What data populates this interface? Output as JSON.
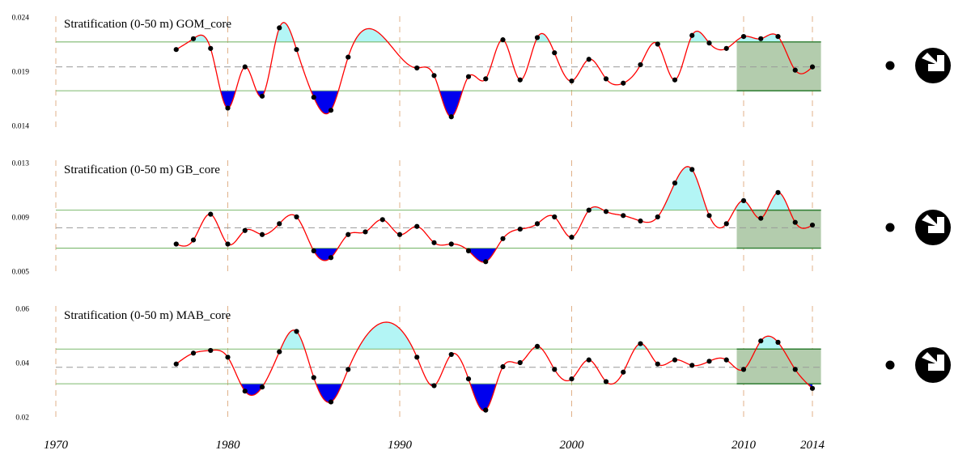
{
  "x_axis": {
    "ticks": [
      1970,
      1980,
      1990,
      2000,
      2010,
      2014
    ],
    "tick_labels": [
      "1970",
      "1980",
      "1990",
      "2000",
      "2010",
      "2014"
    ],
    "range": [
      1970,
      2014
    ]
  },
  "colors": {
    "line": "#ff0000",
    "above_fill": "#b3f5f5",
    "below_fill": "#0000ee",
    "recent_box_fill": "#b3ccad",
    "recent_box_edge": "#2e7d32",
    "sd_line": "#7cb96e",
    "mean_line": "#999999",
    "decade_line": "#e0b088",
    "point": "#000000"
  },
  "chart_data": [
    {
      "type": "line",
      "title": "Stratification (0-50 m) GOM_core",
      "ylim": [
        0.014,
        0.024
      ],
      "yticks": [
        0.014,
        0.019,
        0.024
      ],
      "ytick_labels": [
        "0.014",
        "0.019",
        "0.024"
      ],
      "mean": 0.0194,
      "sd_upper": 0.0217,
      "sd_lower": 0.0172,
      "recent_window": [
        2009.6,
        2014.5
      ],
      "status_icons": [
        "dot-icon",
        "down-right-arrow-icon"
      ],
      "series": [
        {
          "x": [
            1977,
            1978,
            1979,
            1980,
            1981,
            1982,
            1983,
            1984,
            1985,
            1986,
            1987,
            1991,
            1992,
            1993,
            1994,
            1995,
            1996,
            1997,
            1998,
            1999,
            2000,
            2001,
            2002,
            2003,
            2004,
            2005,
            2006,
            2007,
            2008,
            2009,
            2010,
            2011,
            2012,
            2013,
            2014
          ],
          "y": [
            0.021,
            0.022,
            0.0211,
            0.0156,
            0.0194,
            0.0167,
            0.023,
            0.021,
            0.0166,
            0.0154,
            0.0203,
            0.0193,
            0.0186,
            0.0148,
            0.0185,
            0.0183,
            0.0219,
            0.0182,
            0.0221,
            0.0207,
            0.0181,
            0.0201,
            0.0183,
            0.0179,
            0.0196,
            0.0215,
            0.0182,
            0.0223,
            0.0216,
            0.0211,
            0.0222,
            0.022,
            0.0222,
            0.0191,
            0.0194
          ]
        }
      ]
    },
    {
      "type": "line",
      "title": "Stratification (0-50 m) GB_core",
      "ylim": [
        0.005,
        0.013
      ],
      "yticks": [
        0.005,
        0.009,
        0.013
      ],
      "ytick_labels": [
        "0.005",
        "0.009",
        "0.013"
      ],
      "mean": 0.0082,
      "sd_upper": 0.0095,
      "sd_lower": 0.0067,
      "recent_window": [
        2009.6,
        2014.5
      ],
      "status_icons": [
        "dot-icon",
        "down-right-arrow-icon"
      ],
      "series": [
        {
          "x": [
            1977,
            1978,
            1979,
            1980,
            1981,
            1982,
            1983,
            1984,
            1985,
            1986,
            1987,
            1988,
            1989,
            1990,
            1991,
            1992,
            1993,
            1994,
            1995,
            1996,
            1997,
            1998,
            1999,
            2000,
            2001,
            2002,
            2003,
            2004,
            2005,
            2006,
            2007,
            2008,
            2009,
            2010,
            2011,
            2012,
            2013,
            2014
          ],
          "y": [
            0.007,
            0.0073,
            0.0092,
            0.007,
            0.008,
            0.0077,
            0.0085,
            0.009,
            0.0065,
            0.006,
            0.0077,
            0.0079,
            0.0088,
            0.0077,
            0.0083,
            0.0071,
            0.007,
            0.0065,
            0.0057,
            0.0074,
            0.0081,
            0.0085,
            0.009,
            0.0075,
            0.0095,
            0.0094,
            0.0091,
            0.0087,
            0.009,
            0.0115,
            0.0125,
            0.0091,
            0.0085,
            0.0102,
            0.0089,
            0.0108,
            0.0086,
            0.0084
          ]
        }
      ]
    },
    {
      "type": "line",
      "title": "Stratification (0-50 m) MAB_core",
      "ylim": [
        0.02,
        0.06
      ],
      "yticks": [
        0.02,
        0.04,
        0.06
      ],
      "ytick_labels": [
        "0.02",
        "0.04",
        "0.06"
      ],
      "mean": 0.0383,
      "sd_upper": 0.045,
      "sd_lower": 0.0322,
      "recent_window": [
        2009.6,
        2014.5
      ],
      "status_icons": [
        "dot-icon",
        "down-right-arrow-icon"
      ],
      "series": [
        {
          "x": [
            1977,
            1978,
            1979,
            1980,
            1981,
            1982,
            1983,
            1984,
            1985,
            1986,
            1987,
            1991,
            1992,
            1993,
            1994,
            1995,
            1996,
            1997,
            1998,
            1999,
            2000,
            2001,
            2002,
            2003,
            2004,
            2005,
            2006,
            2007,
            2008,
            2009,
            2010,
            2011,
            2012,
            2013,
            2014
          ],
          "y": [
            0.0395,
            0.0435,
            0.0445,
            0.042,
            0.0295,
            0.031,
            0.044,
            0.0515,
            0.0345,
            0.0255,
            0.0375,
            0.042,
            0.0315,
            0.043,
            0.034,
            0.0225,
            0.0385,
            0.04,
            0.046,
            0.0375,
            0.034,
            0.041,
            0.033,
            0.0365,
            0.047,
            0.0395,
            0.041,
            0.039,
            0.0405,
            0.041,
            0.0375,
            0.048,
            0.0475,
            0.0375,
            0.0305
          ]
        }
      ]
    }
  ]
}
